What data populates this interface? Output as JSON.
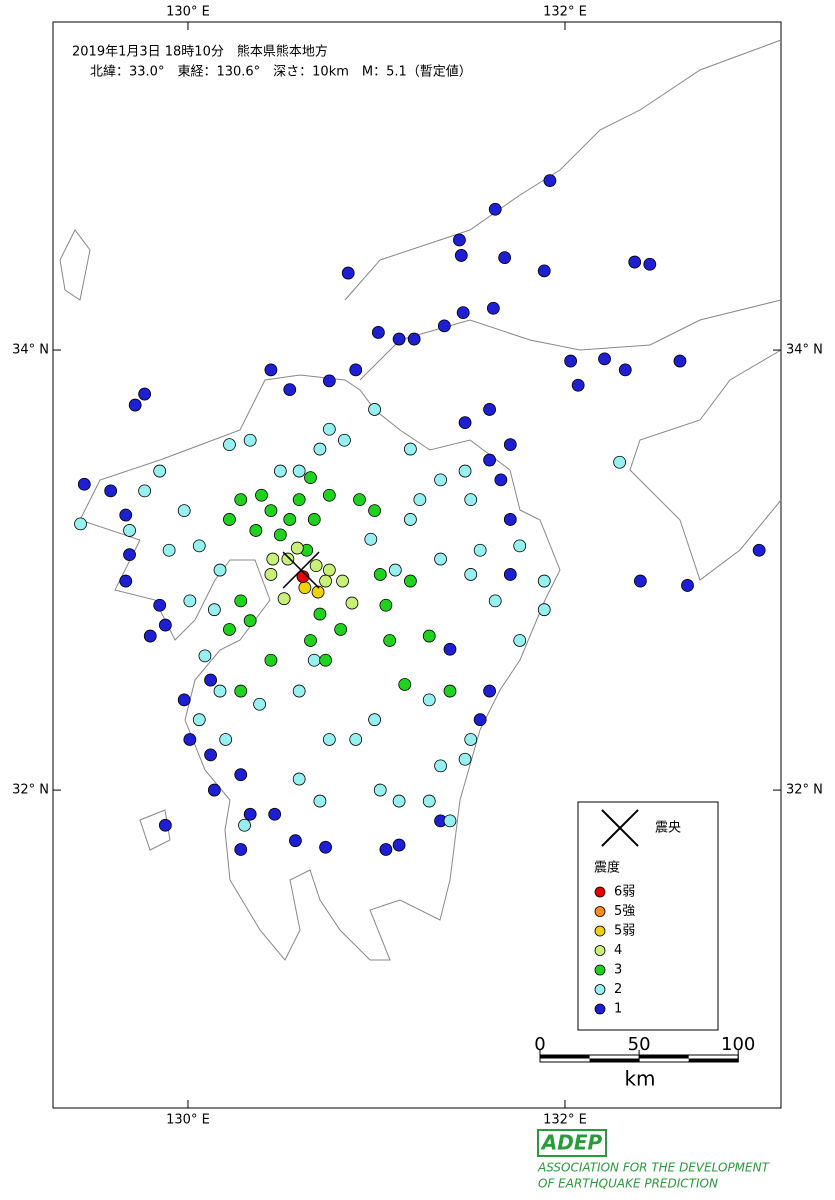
{
  "map": {
    "title": "2019年1月3日 18時10分　熊本県熊本地方",
    "subtitle": "北緯：33.0°　東経：130.6°　深さ：10km　M：5.1（暫定値）",
    "xlim": [
      129.284,
      133.146
    ],
    "ylim": [
      30.555,
      35.491
    ],
    "xticks": [
      {
        "value": 130,
        "label": "130° E"
      },
      {
        "value": 132,
        "label": "132° E"
      }
    ],
    "yticks": [
      {
        "value": 34,
        "label": "34° N"
      },
      {
        "value": 32,
        "label": "32° N"
      }
    ],
    "epicenter": [
      130.6,
      33.0
    ],
    "legend": {
      "epicenter_label": "震央",
      "title": "震度",
      "items": [
        {
          "label": "6弱",
          "color": "#e60000",
          "points": [
            [
              130.61,
              32.97
            ]
          ]
        },
        {
          "label": "5強",
          "color": "#ff8c1e",
          "points": []
        },
        {
          "label": "5弱",
          "color": "#f0d200",
          "points": [
            [
              130.62,
              32.92
            ],
            [
              130.69,
              32.9
            ]
          ]
        },
        {
          "label": "4",
          "color": "#c8f078",
          "points": [
            [
              130.45,
              33.05
            ],
            [
              130.53,
              33.05
            ],
            [
              130.58,
              33.1
            ],
            [
              130.68,
              33.02
            ],
            [
              130.75,
              33.0
            ],
            [
              130.82,
              32.95
            ],
            [
              130.51,
              32.87
            ],
            [
              130.44,
              32.98
            ],
            [
              130.87,
              32.85
            ],
            [
              130.73,
              32.95
            ]
          ]
        },
        {
          "label": "3",
          "color": "#1ed21e",
          "points": [
            [
              130.28,
              33.32
            ],
            [
              130.39,
              33.34
            ],
            [
              130.44,
              33.27
            ],
            [
              130.54,
              33.23
            ],
            [
              130.65,
              33.42
            ],
            [
              130.75,
              33.34
            ],
            [
              130.67,
              33.23
            ],
            [
              130.91,
              33.32
            ],
            [
              130.99,
              33.27
            ],
            [
              130.36,
              33.18
            ],
            [
              130.49,
              33.16
            ],
            [
              130.63,
              33.09
            ],
            [
              130.28,
              32.86
            ],
            [
              130.33,
              32.77
            ],
            [
              130.22,
              32.73
            ],
            [
              130.7,
              32.8
            ],
            [
              130.81,
              32.73
            ],
            [
              130.65,
              32.68
            ],
            [
              131.05,
              32.84
            ],
            [
              131.18,
              32.95
            ],
            [
              131.07,
              32.68
            ],
            [
              131.28,
              32.7
            ],
            [
              131.39,
              32.45
            ],
            [
              131.15,
              32.48
            ],
            [
              130.44,
              32.59
            ],
            [
              130.28,
              32.45
            ],
            [
              130.73,
              32.59
            ],
            [
              131.02,
              32.98
            ],
            [
              130.59,
              33.32
            ],
            [
              130.22,
              33.23
            ]
          ]
        },
        {
          "label": "2",
          "color": "#96f0f0",
          "points": [
            [
              129.85,
              33.45
            ],
            [
              129.77,
              33.36
            ],
            [
              129.98,
              33.27
            ],
            [
              129.69,
              33.18
            ],
            [
              129.43,
              33.21
            ],
            [
              129.9,
              33.09
            ],
            [
              130.06,
              33.11
            ],
            [
              130.17,
              33.0
            ],
            [
              130.01,
              32.86
            ],
            [
              130.14,
              32.82
            ],
            [
              130.09,
              32.61
            ],
            [
              130.17,
              32.45
            ],
            [
              130.06,
              32.32
            ],
            [
              130.2,
              32.23
            ],
            [
              130.38,
              32.39
            ],
            [
              130.59,
              32.45
            ],
            [
              130.67,
              32.59
            ],
            [
              130.75,
              32.23
            ],
            [
              130.89,
              32.23
            ],
            [
              130.99,
              32.32
            ],
            [
              130.59,
              32.05
            ],
            [
              130.7,
              31.95
            ],
            [
              131.02,
              32.0
            ],
            [
              131.12,
              31.95
            ],
            [
              131.28,
              31.95
            ],
            [
              131.39,
              31.86
            ],
            [
              130.3,
              31.84
            ],
            [
              131.5,
              32.23
            ],
            [
              131.47,
              32.14
            ],
            [
              131.34,
              32.11
            ],
            [
              131.23,
              33.32
            ],
            [
              131.18,
              33.23
            ],
            [
              131.34,
              33.41
            ],
            [
              131.47,
              33.45
            ],
            [
              131.5,
              33.32
            ],
            [
              131.55,
              33.09
            ],
            [
              131.5,
              32.98
            ],
            [
              131.63,
              32.86
            ],
            [
              131.76,
              33.11
            ],
            [
              131.89,
              32.95
            ],
            [
              131.89,
              32.82
            ],
            [
              131.76,
              32.68
            ],
            [
              131.28,
              32.41
            ],
            [
              130.75,
              33.64
            ],
            [
              130.7,
              33.55
            ],
            [
              130.83,
              33.59
            ],
            [
              130.99,
              33.73
            ],
            [
              131.18,
              33.55
            ],
            [
              130.33,
              33.59
            ],
            [
              130.22,
              33.57
            ],
            [
              130.49,
              33.45
            ],
            [
              130.59,
              33.45
            ],
            [
              130.97,
              33.14
            ],
            [
              131.1,
              33.0
            ],
            [
              131.34,
              33.05
            ],
            [
              132.29,
              33.49
            ]
          ]
        },
        {
          "label": "1",
          "color": "#1e1ed2",
          "points": [
            [
              131.92,
              34.77
            ],
            [
              131.63,
              34.64
            ],
            [
              131.44,
              34.5
            ],
            [
              130.85,
              34.35
            ],
            [
              131.45,
              34.43
            ],
            [
              131.68,
              34.42
            ],
            [
              131.89,
              34.36
            ],
            [
              132.37,
              34.4
            ],
            [
              132.45,
              34.39
            ],
            [
              131.62,
              34.19
            ],
            [
              131.46,
              34.17
            ],
            [
              131.36,
              34.11
            ],
            [
              131.01,
              34.08
            ],
            [
              131.12,
              34.05
            ],
            [
              131.2,
              34.05
            ],
            [
              132.03,
              33.95
            ],
            [
              132.21,
              33.96
            ],
            [
              132.32,
              33.91
            ],
            [
              132.07,
              33.84
            ],
            [
              132.61,
              33.95
            ],
            [
              133.03,
              33.09
            ],
            [
              132.65,
              32.93
            ],
            [
              132.4,
              32.95
            ],
            [
              131.6,
              33.73
            ],
            [
              131.47,
              33.67
            ],
            [
              131.71,
              33.57
            ],
            [
              131.66,
              33.41
            ],
            [
              131.71,
              33.23
            ],
            [
              131.6,
              32.45
            ],
            [
              131.39,
              32.64
            ],
            [
              131.55,
              32.32
            ],
            [
              130.44,
              33.91
            ],
            [
              130.54,
              33.82
            ],
            [
              130.75,
              33.86
            ],
            [
              130.89,
              33.91
            ],
            [
              129.77,
              33.8
            ],
            [
              129.72,
              33.75
            ],
            [
              129.59,
              33.36
            ],
            [
              129.45,
              33.39
            ],
            [
              129.67,
              33.25
            ],
            [
              129.69,
              33.07
            ],
            [
              129.67,
              32.95
            ],
            [
              129.85,
              32.84
            ],
            [
              129.88,
              32.75
            ],
            [
              129.8,
              32.7
            ],
            [
              129.98,
              32.41
            ],
            [
              130.01,
              32.23
            ],
            [
              130.12,
              32.16
            ],
            [
              130.28,
              32.07
            ],
            [
              130.14,
              32.0
            ],
            [
              130.46,
              31.89
            ],
            [
              130.57,
              31.77
            ],
            [
              130.33,
              31.89
            ],
            [
              130.28,
              31.73
            ],
            [
              129.88,
              31.84
            ],
            [
              130.73,
              31.74
            ],
            [
              131.05,
              31.73
            ],
            [
              131.12,
              31.75
            ],
            [
              131.34,
              31.86
            ],
            [
              131.6,
              33.5
            ],
            [
              131.71,
              32.98
            ],
            [
              130.12,
              32.5
            ]
          ]
        }
      ]
    },
    "scale_bar": {
      "ticks": [
        0,
        50,
        100
      ],
      "unit": "km"
    },
    "logo": {
      "name": "ADEP",
      "line1": "ASSOCIATION FOR THE DEVELOPMENT",
      "line2": "OF EARTHQUAKE PREDICTION"
    }
  }
}
